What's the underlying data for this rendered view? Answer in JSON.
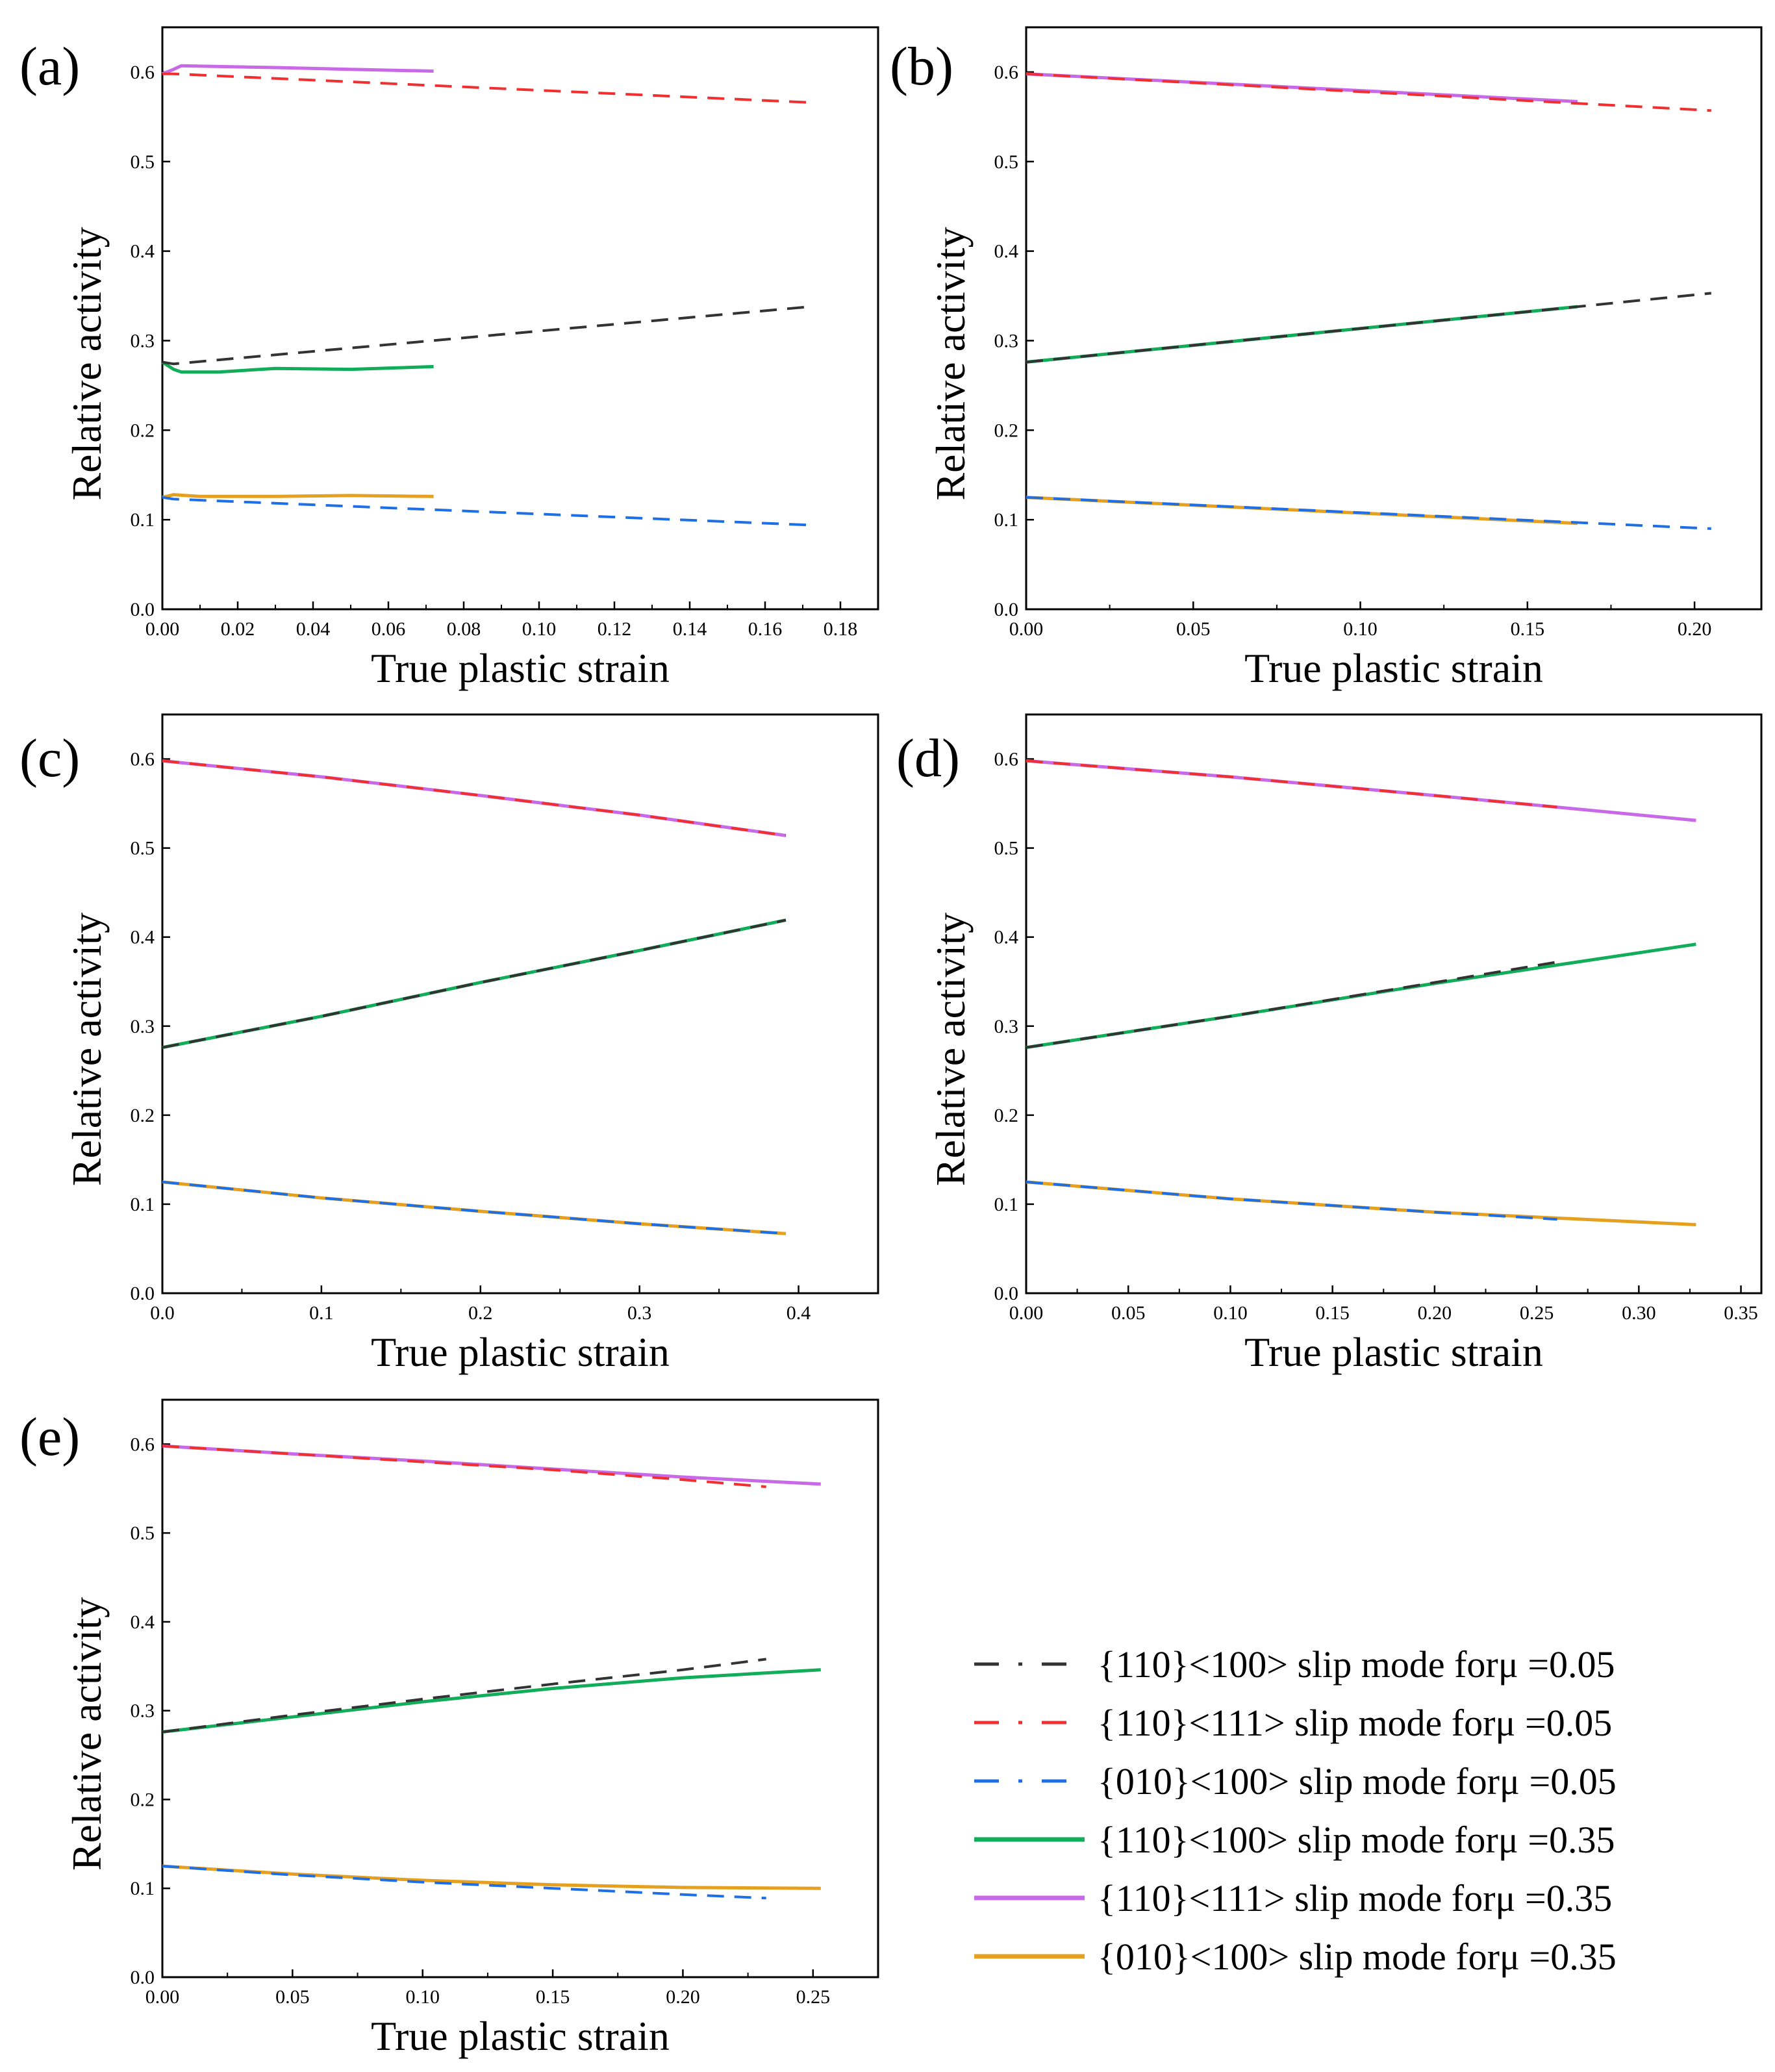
{
  "colors": {
    "black_dash": "#333333",
    "red_dash": "#f03030",
    "blue_dash": "#1e6fe6",
    "green": "#12ad5a",
    "violet": "#c86ae8",
    "orange": "#e6a020"
  },
  "legend": [
    {
      "label": "{110}<100> slip mode forμ =0.05",
      "color": "#333333",
      "dash": true
    },
    {
      "label": "{110}<111> slip mode forμ =0.05",
      "color": "#f03030",
      "dash": true
    },
    {
      "label": "{010}<100> slip mode forμ =0.05",
      "color": "#1e6fe6",
      "dash": true
    },
    {
      "label": "{110}<100> slip mode forμ =0.35",
      "color": "#12ad5a",
      "dash": false
    },
    {
      "label": "{110}<111> slip mode forμ =0.35",
      "color": "#c86ae8",
      "dash": false
    },
    {
      "label": "{010}<100> slip mode forμ =0.35",
      "color": "#e6a020",
      "dash": false
    }
  ],
  "chart_data": [
    {
      "type": "line",
      "panel_label": "(a)",
      "xlabel": "True plastic strain",
      "ylabel": "Relative activity",
      "xlim": [
        0,
        0.19
      ],
      "ylim": [
        0,
        0.65
      ],
      "xticks": [
        0.0,
        0.02,
        0.04,
        0.06,
        0.08,
        0.1,
        0.12,
        0.14,
        0.16,
        0.18
      ],
      "xtick_labels": [
        "0.00",
        "0.02",
        "0.04",
        "0.06",
        "0.08",
        "0.10",
        "0.12",
        "0.14",
        "0.16",
        "0.18"
      ],
      "yticks": [
        0.0,
        0.1,
        0.2,
        0.3,
        0.4,
        0.5,
        0.6
      ],
      "ytick_labels": [
        "0.0",
        "0.1",
        "0.2",
        "0.3",
        "0.4",
        "0.5",
        "0.6"
      ],
      "series": [
        {
          "name": "{110}<100> slip mode forμ =0.05",
          "x": [
            0,
            0.003,
            0.172
          ],
          "y": [
            0.276,
            0.274,
            0.338
          ]
        },
        {
          "name": "{110}<111> slip mode forμ =0.05",
          "x": [
            0,
            0.003,
            0.172
          ],
          "y": [
            0.598,
            0.598,
            0.566
          ]
        },
        {
          "name": "{010}<100> slip mode forμ =0.05",
          "x": [
            0,
            0.003,
            0.172
          ],
          "y": [
            0.125,
            0.123,
            0.094
          ]
        },
        {
          "name": "{110}<100> slip mode forμ =0.35",
          "x": [
            0,
            0.003,
            0.005,
            0.015,
            0.03,
            0.05,
            0.072
          ],
          "y": [
            0.276,
            0.268,
            0.265,
            0.265,
            0.269,
            0.268,
            0.271
          ]
        },
        {
          "name": "{110}<111> slip mode forμ =0.35",
          "x": [
            0,
            0.003,
            0.005,
            0.03,
            0.05,
            0.072
          ],
          "y": [
            0.598,
            0.603,
            0.607,
            0.605,
            0.603,
            0.601
          ]
        },
        {
          "name": "{010}<100> slip mode forμ =0.35",
          "x": [
            0,
            0.003,
            0.01,
            0.03,
            0.05,
            0.072
          ],
          "y": [
            0.125,
            0.128,
            0.126,
            0.126,
            0.127,
            0.126
          ]
        }
      ]
    },
    {
      "type": "line",
      "panel_label": "(b)",
      "xlabel": "True plastic strain",
      "ylabel": "Relative activity",
      "xlim": [
        0,
        0.22
      ],
      "ylim": [
        0,
        0.65
      ],
      "xticks": [
        0.0,
        0.05,
        0.1,
        0.15,
        0.2
      ],
      "xtick_labels": [
        "0.00",
        "0.05",
        "0.10",
        "0.15",
        "0.20"
      ],
      "yticks": [
        0.0,
        0.1,
        0.2,
        0.3,
        0.4,
        0.5,
        0.6
      ],
      "ytick_labels": [
        "0.0",
        "0.1",
        "0.2",
        "0.3",
        "0.4",
        "0.5",
        "0.6"
      ],
      "series": [
        {
          "name": "{110}<100> slip mode forμ =0.05",
          "x": [
            0,
            0.205
          ],
          "y": [
            0.276,
            0.353
          ]
        },
        {
          "name": "{110}<111> slip mode forμ =0.05",
          "x": [
            0,
            0.205
          ],
          "y": [
            0.598,
            0.557
          ]
        },
        {
          "name": "{010}<100> slip mode forμ =0.05",
          "x": [
            0,
            0.205
          ],
          "y": [
            0.125,
            0.09
          ]
        },
        {
          "name": "{110}<100> slip mode forμ =0.35",
          "x": [
            0,
            0.165
          ],
          "y": [
            0.276,
            0.338
          ]
        },
        {
          "name": "{110}<111> slip mode forμ =0.35",
          "x": [
            0,
            0.165
          ],
          "y": [
            0.598,
            0.567
          ]
        },
        {
          "name": "{010}<100> slip mode forμ =0.35",
          "x": [
            0,
            0.165
          ],
          "y": [
            0.125,
            0.096
          ]
        }
      ]
    },
    {
      "type": "line",
      "panel_label": "(c)",
      "xlabel": "True plastic strain",
      "ylabel": "Relative activity",
      "xlim": [
        0,
        0.45
      ],
      "ylim": [
        0,
        0.65
      ],
      "xticks": [
        0.0,
        0.1,
        0.2,
        0.3,
        0.4
      ],
      "xtick_labels": [
        "0.0",
        "0.1",
        "0.2",
        "0.3",
        "0.4"
      ],
      "yticks": [
        0.0,
        0.1,
        0.2,
        0.3,
        0.4,
        0.5,
        0.6
      ],
      "ytick_labels": [
        "0.0",
        "0.1",
        "0.2",
        "0.3",
        "0.4",
        "0.5",
        "0.6"
      ],
      "series": [
        {
          "name": "{110}<100> slip mode forμ =0.05",
          "x": [
            0,
            0.1,
            0.2,
            0.3,
            0.392
          ],
          "y": [
            0.276,
            0.311,
            0.349,
            0.385,
            0.419
          ]
        },
        {
          "name": "{110}<111> slip mode forμ =0.05",
          "x": [
            0,
            0.1,
            0.2,
            0.3,
            0.392
          ],
          "y": [
            0.598,
            0.58,
            0.559,
            0.537,
            0.514
          ]
        },
        {
          "name": "{010}<100> slip mode forμ =0.05",
          "x": [
            0,
            0.1,
            0.2,
            0.3,
            0.392
          ],
          "y": [
            0.125,
            0.107,
            0.092,
            0.078,
            0.067
          ]
        },
        {
          "name": "{110}<100> slip mode forμ =0.35",
          "x": [
            0,
            0.1,
            0.2,
            0.3,
            0.392
          ],
          "y": [
            0.276,
            0.311,
            0.349,
            0.385,
            0.419
          ]
        },
        {
          "name": "{110}<111> slip mode forμ =0.35",
          "x": [
            0,
            0.1,
            0.2,
            0.3,
            0.392
          ],
          "y": [
            0.598,
            0.58,
            0.559,
            0.537,
            0.514
          ]
        },
        {
          "name": "{010}<100> slip mode forμ =0.35",
          "x": [
            0,
            0.1,
            0.2,
            0.3,
            0.392
          ],
          "y": [
            0.125,
            0.107,
            0.092,
            0.078,
            0.067
          ]
        }
      ]
    },
    {
      "type": "line",
      "panel_label": "(d)",
      "xlabel": "True plastic strain",
      "ylabel": "Relative activity",
      "xlim": [
        0,
        0.36
      ],
      "ylim": [
        0,
        0.65
      ],
      "xticks": [
        0.0,
        0.05,
        0.1,
        0.15,
        0.2,
        0.25,
        0.3,
        0.35
      ],
      "xtick_labels": [
        "0.00",
        "0.05",
        "0.10",
        "0.15",
        "0.20",
        "0.25",
        "0.30",
        "0.35"
      ],
      "yticks": [
        0.0,
        0.1,
        0.2,
        0.3,
        0.4,
        0.5,
        0.6
      ],
      "ytick_labels": [
        "0.0",
        "0.1",
        "0.2",
        "0.3",
        "0.4",
        "0.5",
        "0.6"
      ],
      "series": [
        {
          "name": "{110}<100> slip mode forμ =0.05",
          "x": [
            0,
            0.1,
            0.2,
            0.26
          ],
          "y": [
            0.276,
            0.311,
            0.349,
            0.372
          ]
        },
        {
          "name": "{110}<111> slip mode forμ =0.05",
          "x": [
            0,
            0.1,
            0.2,
            0.26
          ],
          "y": [
            0.598,
            0.58,
            0.559,
            0.546
          ]
        },
        {
          "name": "{010}<100> slip mode forμ =0.05",
          "x": [
            0,
            0.1,
            0.2,
            0.26
          ],
          "y": [
            0.125,
            0.106,
            0.091,
            0.083
          ]
        },
        {
          "name": "{110}<100> slip mode forμ =0.35",
          "x": [
            0,
            0.1,
            0.2,
            0.328
          ],
          "y": [
            0.276,
            0.311,
            0.348,
            0.392
          ]
        },
        {
          "name": "{110}<111> slip mode forμ =0.35",
          "x": [
            0,
            0.1,
            0.2,
            0.328
          ],
          "y": [
            0.598,
            0.58,
            0.559,
            0.531
          ]
        },
        {
          "name": "{010}<100> slip mode forμ =0.35",
          "x": [
            0,
            0.1,
            0.2,
            0.328
          ],
          "y": [
            0.125,
            0.106,
            0.091,
            0.077
          ]
        }
      ]
    },
    {
      "type": "line",
      "panel_label": "(e)",
      "xlabel": "True plastic strain",
      "ylabel": "Relative activity",
      "xlim": [
        0,
        0.275
      ],
      "ylim": [
        0,
        0.65
      ],
      "xticks": [
        0.0,
        0.05,
        0.1,
        0.15,
        0.2,
        0.25
      ],
      "xtick_labels": [
        "0.00",
        "0.05",
        "0.10",
        "0.15",
        "0.20",
        "0.25"
      ],
      "yticks": [
        0.0,
        0.1,
        0.2,
        0.3,
        0.4,
        0.5,
        0.6
      ],
      "ytick_labels": [
        "0.0",
        "0.1",
        "0.2",
        "0.3",
        "0.4",
        "0.5",
        "0.6"
      ],
      "series": [
        {
          "name": "{110}<100> slip mode forμ =0.05",
          "x": [
            0,
            0.05,
            0.1,
            0.15,
            0.2,
            0.232
          ],
          "y": [
            0.276,
            0.295,
            0.313,
            0.33,
            0.346,
            0.358
          ]
        },
        {
          "name": "{110}<111> slip mode forμ =0.05",
          "x": [
            0,
            0.05,
            0.1,
            0.15,
            0.2,
            0.232
          ],
          "y": [
            0.598,
            0.589,
            0.58,
            0.571,
            0.56,
            0.552
          ]
        },
        {
          "name": "{010}<100> slip mode forμ =0.05",
          "x": [
            0,
            0.05,
            0.1,
            0.15,
            0.2,
            0.232
          ],
          "y": [
            0.125,
            0.115,
            0.107,
            0.1,
            0.093,
            0.089
          ]
        },
        {
          "name": "{110}<100> slip mode forμ =0.35",
          "x": [
            0,
            0.05,
            0.1,
            0.15,
            0.2,
            0.253
          ],
          "y": [
            0.276,
            0.293,
            0.31,
            0.325,
            0.337,
            0.346
          ]
        },
        {
          "name": "{110}<111> slip mode forμ =0.35",
          "x": [
            0,
            0.05,
            0.1,
            0.15,
            0.2,
            0.253
          ],
          "y": [
            0.598,
            0.589,
            0.581,
            0.572,
            0.563,
            0.555
          ]
        },
        {
          "name": "{010}<100> slip mode forμ =0.35",
          "x": [
            0,
            0.05,
            0.1,
            0.15,
            0.2,
            0.253
          ],
          "y": [
            0.125,
            0.116,
            0.109,
            0.104,
            0.101,
            0.1
          ]
        }
      ]
    }
  ]
}
